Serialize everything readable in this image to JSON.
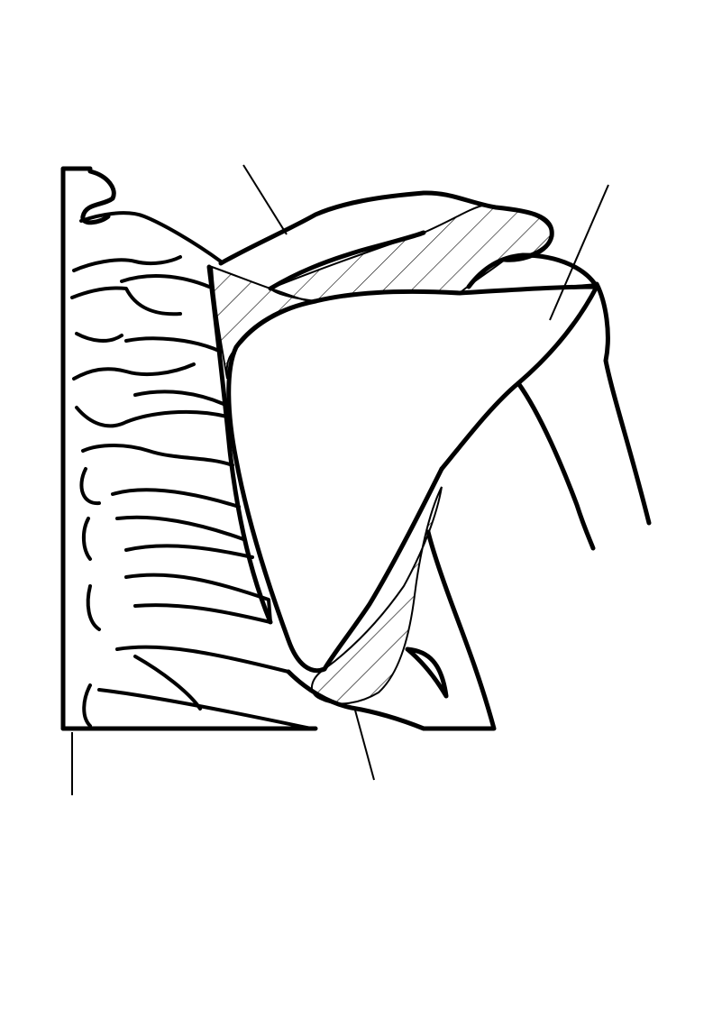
{
  "diagram": {
    "type": "anatomical-line-drawing",
    "colors": {
      "stroke": "#000000",
      "background": "#ffffff",
      "hatch": "#000000"
    },
    "labels": [],
    "leader_lines": 4
  }
}
